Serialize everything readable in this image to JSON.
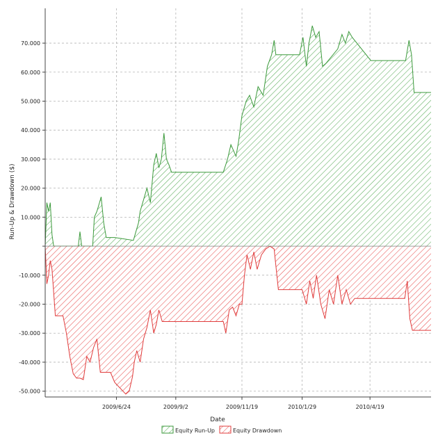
{
  "chart_data": {
    "type": "area",
    "title": "",
    "xlabel": "Date",
    "ylabel": "Run-Up & Drawdown ($)",
    "ylim": [
      -52000,
      82000
    ],
    "xlim": [
      "2009-04-01",
      "2010-06-30"
    ],
    "y_ticks": [
      -50000,
      -40000,
      -30000,
      -20000,
      -10000,
      0,
      10000,
      20000,
      30000,
      40000,
      50000,
      60000,
      70000
    ],
    "y_tick_labels": [
      "-50.000",
      "-40.000",
      "-30.000",
      "-20.000",
      "-10.000",
      "",
      "10.000",
      "20.000",
      "30.000",
      "40.000",
      "50.000",
      "60.000",
      "70.000"
    ],
    "x_ticks": [
      "2009-06-24",
      "2009-09-02",
      "2009-11-19",
      "2010-01-29",
      "2010-04-19"
    ],
    "x_tick_labels": [
      "2009/6/24",
      "2009/9/2",
      "2009/11/19",
      "2010/1/29",
      "2010/4/19"
    ],
    "grid": true,
    "legend_position": "bottom-center",
    "series": [
      {
        "name": "Equity Run-Up",
        "color": "#3c9a3c",
        "x": [
          "2009-04-01",
          "2009-04-03",
          "2009-04-05",
          "2009-04-07",
          "2009-04-09",
          "2009-04-11",
          "2009-04-13",
          "2009-05-10",
          "2009-05-12",
          "2009-05-14",
          "2009-05-27",
          "2009-05-29",
          "2009-06-01",
          "2009-06-04",
          "2009-06-06",
          "2009-06-09",
          "2009-06-12",
          "2009-06-15",
          "2009-06-18",
          "2009-06-22",
          "2009-07-14",
          "2009-07-17",
          "2009-07-20",
          "2009-07-22",
          "2009-07-26",
          "2009-07-30",
          "2009-08-03",
          "2009-08-07",
          "2009-08-10",
          "2009-08-13",
          "2009-08-16",
          "2009-08-19",
          "2009-08-22",
          "2009-08-25",
          "2009-08-28",
          "2009-09-01",
          "2009-10-28",
          "2009-11-02",
          "2009-11-06",
          "2009-11-09",
          "2009-11-12",
          "2009-11-15",
          "2009-11-19",
          "2009-11-24",
          "2009-11-28",
          "2009-12-03",
          "2009-12-08",
          "2009-12-14",
          "2009-12-19",
          "2009-12-24",
          "2009-12-27",
          "2009-12-29",
          "2010-01-26",
          "2010-01-30",
          "2010-02-03",
          "2010-02-06",
          "2010-02-10",
          "2010-02-14",
          "2010-02-18",
          "2010-02-22",
          "2010-02-26",
          "2010-03-12",
          "2010-03-17",
          "2010-03-21",
          "2010-03-25",
          "2010-03-29",
          "2010-04-20",
          "2010-05-31",
          "2010-06-04",
          "2010-06-07",
          "2010-06-10",
          "2010-06-30"
        ],
        "values": [
          0,
          15000,
          12000,
          15000,
          4000,
          0,
          0,
          0,
          5000,
          0,
          0,
          10000,
          12000,
          15000,
          17000,
          8000,
          3000,
          3000,
          3000,
          3000,
          2000,
          5000,
          8000,
          12000,
          16000,
          20000,
          15000,
          28000,
          32000,
          27000,
          30000,
          39000,
          30000,
          28000,
          25500,
          25500,
          25500,
          30000,
          35000,
          33000,
          31000,
          36000,
          45000,
          50000,
          52000,
          48000,
          55000,
          52000,
          62000,
          66000,
          71000,
          66000,
          66000,
          72000,
          62000,
          70000,
          76000,
          72000,
          74000,
          62000,
          63000,
          68000,
          73000,
          70000,
          74000,
          72000,
          64000,
          64000,
          71000,
          66000,
          53000,
          53000
        ]
      },
      {
        "name": "Equity Drawdown",
        "color": "#e03c3c",
        "x": [
          "2009-04-01",
          "2009-04-03",
          "2009-04-05",
          "2009-04-07",
          "2009-04-09",
          "2009-04-13",
          "2009-04-22",
          "2009-04-26",
          "2009-04-30",
          "2009-05-04",
          "2009-05-08",
          "2009-05-12",
          "2009-05-16",
          "2009-05-20",
          "2009-05-24",
          "2009-05-28",
          "2009-06-01",
          "2009-06-05",
          "2009-06-09",
          "2009-06-12",
          "2009-06-17",
          "2009-06-22",
          "2009-07-05",
          "2009-07-09",
          "2009-07-13",
          "2009-07-15",
          "2009-07-18",
          "2009-07-22",
          "2009-07-26",
          "2009-07-30",
          "2009-08-03",
          "2009-08-07",
          "2009-08-10",
          "2009-08-13",
          "2009-08-17",
          "2009-08-21",
          "2009-08-25",
          "2009-10-28",
          "2009-10-31",
          "2009-11-04",
          "2009-11-08",
          "2009-11-12",
          "2009-11-16",
          "2009-11-19",
          "2009-11-22",
          "2009-11-25",
          "2009-11-29",
          "2009-12-03",
          "2009-12-07",
          "2009-12-12",
          "2009-12-17",
          "2009-12-22",
          "2009-12-27",
          "2010-01-01",
          "2010-01-06",
          "2010-01-29",
          "2010-02-03",
          "2010-02-07",
          "2010-02-11",
          "2010-02-15",
          "2010-02-20",
          "2010-02-25",
          "2010-03-02",
          "2010-03-07",
          "2010-03-12",
          "2010-03-17",
          "2010-03-22",
          "2010-03-27",
          "2010-04-01",
          "2010-05-30",
          "2010-06-02",
          "2010-06-05",
          "2010-06-08",
          "2010-06-30"
        ],
        "values": [
          0,
          -13000,
          -10000,
          -5000,
          -8000,
          -24000,
          -24000,
          -30000,
          -38000,
          -44000,
          -45500,
          -45500,
          -46000,
          -38000,
          -40000,
          -35000,
          -32000,
          -43500,
          -43500,
          -43500,
          -43500,
          -47000,
          -51000,
          -50000,
          -45000,
          -40000,
          -36000,
          -40000,
          -32000,
          -28000,
          -22000,
          -30000,
          -27000,
          -22000,
          -26000,
          -26000,
          -26000,
          -26000,
          -30000,
          -22000,
          -21000,
          -24000,
          -20000,
          -20000,
          -10000,
          -3000,
          -8000,
          -2000,
          -8000,
          -3000,
          -1000,
          0,
          -1000,
          -15000,
          -15000,
          -15000,
          -20000,
          -12000,
          -18000,
          -10000,
          -20000,
          -25000,
          -15000,
          -20000,
          -10000,
          -20000,
          -15000,
          -20000,
          -18000,
          -18000,
          -12000,
          -25000,
          -29000,
          -29000
        ]
      }
    ]
  },
  "legend": {
    "items": [
      {
        "label": "Equity Run-Up",
        "color": "#3c9a3c"
      },
      {
        "label": "Equity Drawdown",
        "color": "#e03c3c"
      }
    ]
  }
}
